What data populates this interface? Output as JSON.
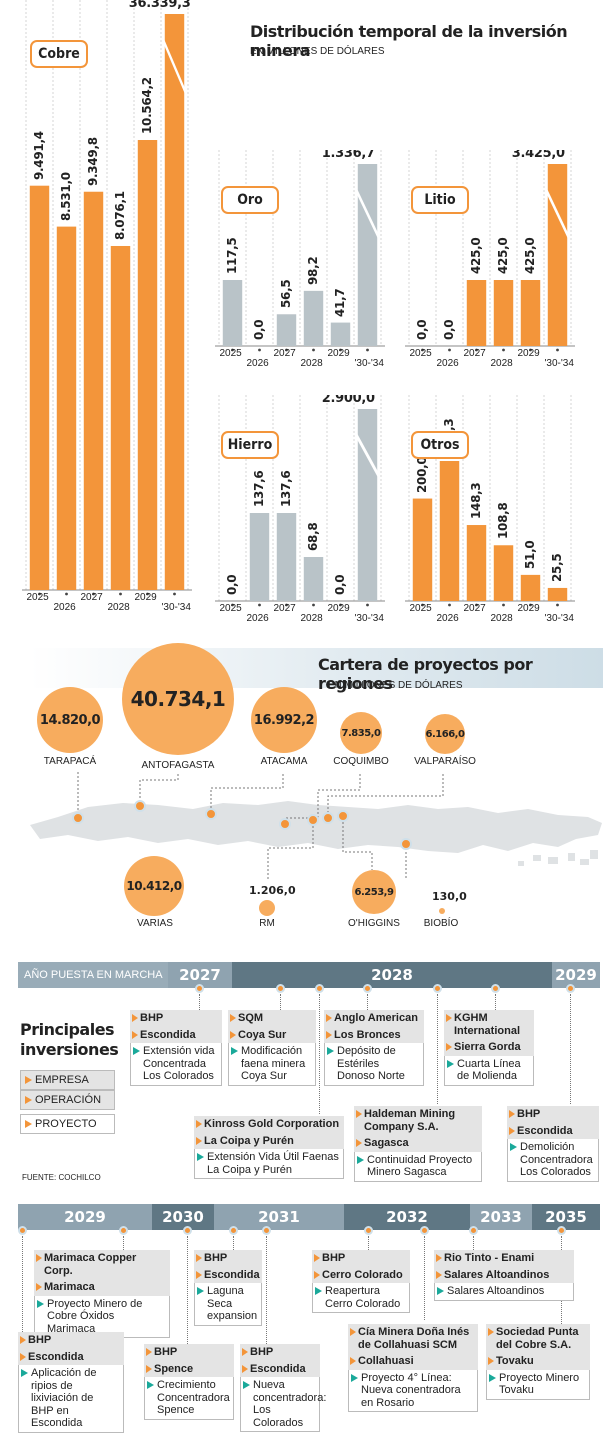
{
  "investment": {
    "title": "Distribución temporal de la inversión minera",
    "subtitle": "EN MILLONES DE DÓLARES"
  },
  "chart_data": [
    {
      "type": "bar",
      "title": "Cobre",
      "categories": [
        "2025",
        "2026",
        "2027",
        "2028",
        "2029",
        "'30-'34"
      ],
      "values": [
        9491.4,
        8531.0,
        9349.8,
        8076.1,
        10564.2,
        36339.3
      ],
      "labels": [
        "9.491,4",
        "8.531,0",
        "9.349,8",
        "8.076,1",
        "10.564,2",
        "36.339,3"
      ],
      "color": "#f3953a"
    },
    {
      "type": "bar",
      "title": "Oro",
      "categories": [
        "2025",
        "2026",
        "2027",
        "2028",
        "2029",
        "'30-'34"
      ],
      "values": [
        117.5,
        0.0,
        56.5,
        98.2,
        41.7,
        1336.7
      ],
      "labels": [
        "117,5",
        "0,0",
        "56,5",
        "98,2",
        "41,7",
        "1.336,7"
      ],
      "color": "#b9c3c8"
    },
    {
      "type": "bar",
      "title": "Litio",
      "categories": [
        "2025",
        "2026",
        "2027",
        "2028",
        "2029",
        "'30-'34"
      ],
      "values": [
        0.0,
        0.0,
        425.0,
        425.0,
        425.0,
        3425.0
      ],
      "labels": [
        "0,0",
        "0,0",
        "425,0",
        "425,0",
        "425,0",
        "3.425,0"
      ],
      "color": "#f3953a"
    },
    {
      "type": "bar",
      "title": "Hierro",
      "categories": [
        "2025",
        "2026",
        "2027",
        "2028",
        "2029",
        "'30-'34"
      ],
      "values": [
        0.0,
        137.6,
        137.6,
        68.8,
        0.0,
        2900.0
      ],
      "labels": [
        "0,0",
        "137,6",
        "137,6",
        "68,8",
        "0,0",
        "2.900,0"
      ],
      "color": "#b9c3c8"
    },
    {
      "type": "bar",
      "title": "Otros",
      "categories": [
        "2025",
        "2026",
        "2027",
        "2028",
        "2029",
        "'30-'34"
      ],
      "values": [
        200.0,
        273.3,
        148.3,
        108.8,
        51.0,
        25.5
      ],
      "labels": [
        "200,0",
        "273,3",
        "148,3",
        "108,8",
        "51,0",
        "25,5"
      ],
      "color": "#f3953a"
    }
  ],
  "regions": {
    "title": "Cartera de proyectos por regiones",
    "subtitle": "EN MILLONES DE DÓLARES",
    "items": [
      {
        "name": "TARAPACÁ",
        "value": "14.820,0",
        "amount": 14820.0
      },
      {
        "name": "ANTOFAGASTA",
        "value": "40.734,1",
        "amount": 40734.1
      },
      {
        "name": "ATACAMA",
        "value": "16.992,2",
        "amount": 16992.2
      },
      {
        "name": "COQUIMBO",
        "value": "7.835,0",
        "amount": 7835.0
      },
      {
        "name": "VALPARAÍSO",
        "value": "6.166,0",
        "amount": 6166.0
      },
      {
        "name": "VARIAS",
        "value": "10.412,0",
        "amount": 10412.0
      },
      {
        "name": "RM",
        "value": "1.206,0",
        "amount": 1206.0
      },
      {
        "name": "O'HIGGINS",
        "value": "6.253,9",
        "amount": 6253.9
      },
      {
        "name": "BIOBÍO",
        "value": "130,0",
        "amount": 130.0
      }
    ]
  },
  "timeline": {
    "header_label": "AÑO PUESTA EN MARCHA",
    "title": "Principales inversiones",
    "legend": {
      "empresa": "EMPRESA",
      "operacion": "OPERACIÓN",
      "proyecto": "PROYECTO"
    },
    "source": "FUENTE: COCHILCO",
    "row1_years": [
      "2027",
      "2028",
      "2029"
    ],
    "row2_years": [
      "2029",
      "2030",
      "2031",
      "2032",
      "2033",
      "2035"
    ],
    "cards": [
      {
        "company": "BHP",
        "op": "Escondida",
        "project": "Extensión vida Concentrada Los Colorados"
      },
      {
        "company": "SQM",
        "op": "Coya Sur",
        "project": "Modificación faena minera Coya Sur"
      },
      {
        "company": "Anglo American",
        "op": "Los Bronces",
        "project": "Depósito de Estériles Donoso Norte"
      },
      {
        "company": "KGHM International",
        "op": "Sierra Gorda",
        "project": "Cuarta Línea de Molienda"
      },
      {
        "company": "Kinross Gold Corporation",
        "op": "La Coipa y Purén",
        "project": "Extensión Vida Útil Faenas La Coipa y Purén"
      },
      {
        "company": "Haldeman Mining Company S.A.",
        "op": "Sagasca",
        "project": "Continuidad Proyecto Minero Sagasca"
      },
      {
        "company": "BHP",
        "op": "Escondida",
        "project": "Demolición Concentradora Los Colorados"
      },
      {
        "company": "Marimaca Copper Corp.",
        "op": "Marimaca",
        "project": "Proyecto Minero de Cobre Óxidos Marimaca"
      },
      {
        "company": "BHP",
        "op": "Escondida",
        "project": "Aplicación de ripios de lixiviación de BHP en Escondida"
      },
      {
        "company": "BHP",
        "op": "Escondida",
        "project": "Laguna Seca expansion"
      },
      {
        "company": "BHP",
        "op": "Spence",
        "project": "Crecimiento Concentradora Spence"
      },
      {
        "company": "BHP",
        "op": "Escondida",
        "project": "Nueva concentradora: Los Colorados"
      },
      {
        "company": "BHP",
        "op": "Cerro Colorado",
        "project": "Reapertura Cerro Colorado"
      },
      {
        "company": "Cía Minera Doña Inés de Collahuasi SCM",
        "op": "Collahuasi",
        "project": "Proyecto 4° Línea: Nueva conentradora en Rosario"
      },
      {
        "company": "Rio Tinto - Enami",
        "op": "Salares Altoandinos",
        "project": "Salares Altoandinos"
      },
      {
        "company": "Sociedad Punta del Cobre S.A.",
        "op": "Tovaku",
        "project": "Proyecto Minero Tovaku"
      }
    ]
  }
}
